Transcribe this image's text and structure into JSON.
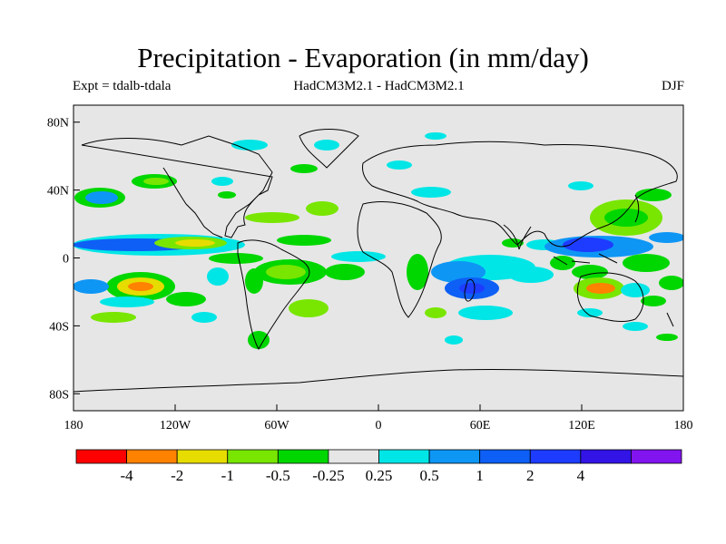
{
  "title": "Precipitation - Evaporation (in mm/day)",
  "subtitle_left": "Expt = tdalb-tdala",
  "subtitle_center": "HadCM3M2.1 - HadCM3M2.1",
  "subtitle_right": "DJF",
  "map": {
    "projection": "equirectangular",
    "lon_range": [
      -180,
      180
    ],
    "lat_range": [
      -90,
      90
    ],
    "background_color": "#e6e6e6",
    "lat_ticks": [
      {
        "label": "80N",
        "lat": 80
      },
      {
        "label": "40N",
        "lat": 40
      },
      {
        "label": "0",
        "lat": 0
      },
      {
        "label": "40S",
        "lat": -40
      },
      {
        "label": "80S",
        "lat": -80
      }
    ],
    "lon_ticks": [
      {
        "label": "180",
        "lon": -180
      },
      {
        "label": "120W",
        "lon": -120
      },
      {
        "label": "60W",
        "lon": -60
      },
      {
        "label": "0",
        "lon": 0
      },
      {
        "label": "60E",
        "lon": 60
      },
      {
        "label": "120E",
        "lon": 120
      },
      {
        "label": "180",
        "lon": 180
      }
    ],
    "anomaly_regions": [
      {
        "name": "equatorial-pacific-band",
        "lon": -150,
        "lat": 8,
        "color": "#0e5ff5"
      },
      {
        "name": "equatorial-pacific-cyan",
        "lon": -120,
        "lat": 5,
        "color": "#00e6e6"
      },
      {
        "name": "itcz-dry-band",
        "lon": -100,
        "lat": 10,
        "color": "#00d700"
      },
      {
        "name": "south-pacific-dry",
        "lon": -145,
        "lat": -17,
        "color": "#e6dc00"
      },
      {
        "name": "amazon-green",
        "lon": -60,
        "lat": -10,
        "color": "#78e600"
      },
      {
        "name": "south-atlantic-dry",
        "lon": -25,
        "lat": -10,
        "color": "#00d700"
      },
      {
        "name": "north-pacific-wet",
        "lon": -165,
        "lat": 38,
        "color": "#0e96f5"
      },
      {
        "name": "indian-ocean-wet",
        "lon": 55,
        "lat": -15,
        "color": "#0e5ff5"
      },
      {
        "name": "maritime-continent",
        "lon": 125,
        "lat": 5,
        "color": "#1e3cff"
      },
      {
        "name": "north-australia-dry",
        "lon": 130,
        "lat": -15,
        "color": "#ff8c00"
      },
      {
        "name": "west-pacific-wet",
        "lon": 160,
        "lat": 10,
        "color": "#0e96f5"
      }
    ]
  },
  "colorbar": {
    "colors": [
      "#ff0000",
      "#ff8200",
      "#e6dc00",
      "#78e600",
      "#00d700",
      "#e6e6e6",
      "#00e6e6",
      "#0e96f5",
      "#0e5ff5",
      "#1e3cff",
      "#3214e6",
      "#8214f0"
    ],
    "labels": [
      "-4",
      "-2",
      "-1",
      "-0.5",
      "-0.25",
      "0.25",
      "0.5",
      "1",
      "2",
      "4"
    ]
  }
}
